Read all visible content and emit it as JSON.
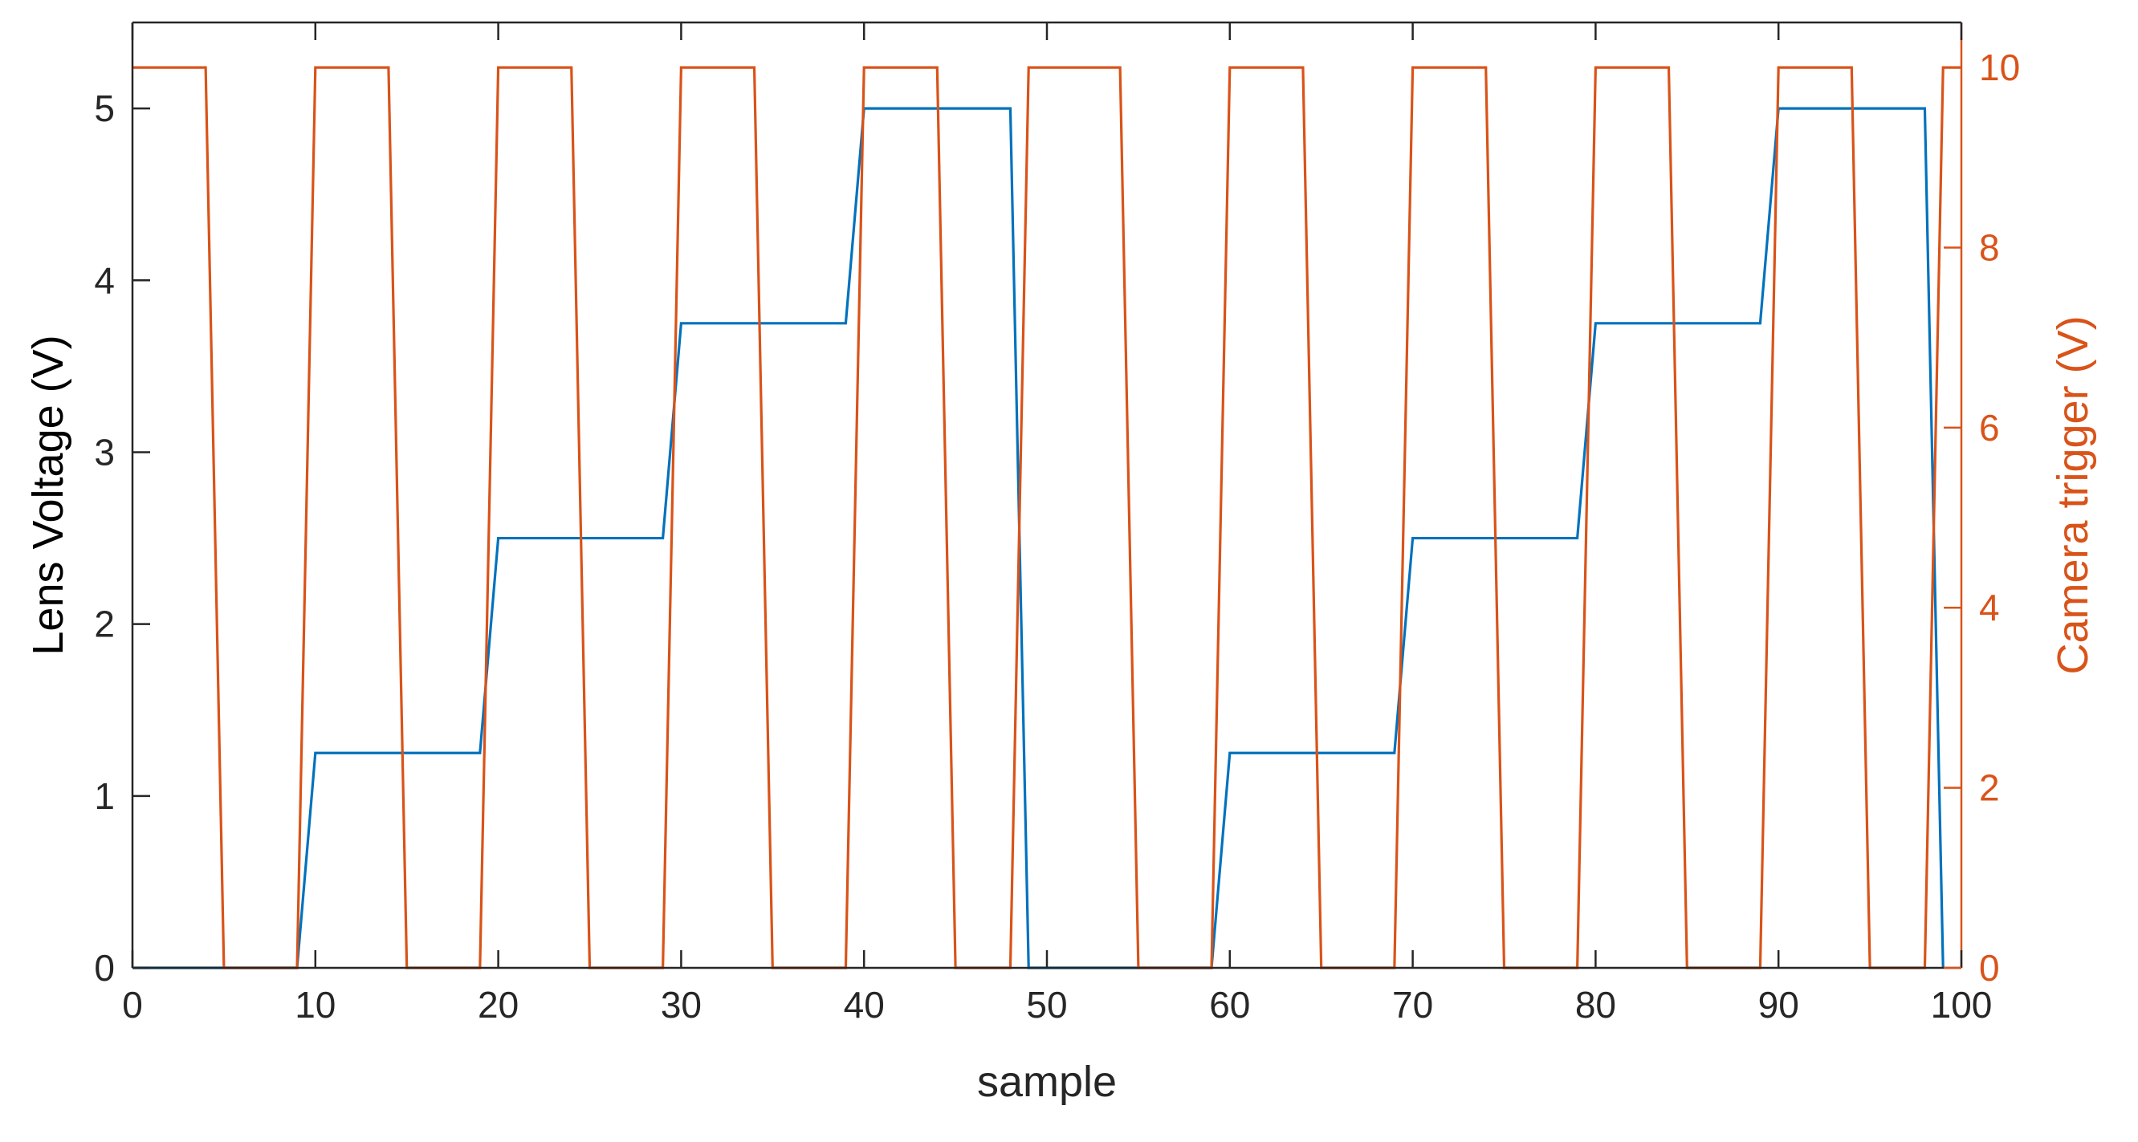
{
  "chart_data": {
    "type": "line",
    "title": "",
    "xlabel": "sample",
    "ylabel_left": "Lens Voltage (V)",
    "ylabel_right": "Camera trigger (V)",
    "xlim": [
      0,
      100
    ],
    "ylim_left": [
      0,
      5.5
    ],
    "ylim_right": [
      0,
      10.5
    ],
    "xticks": [
      "0",
      "10",
      "20",
      "30",
      "40",
      "50",
      "60",
      "70",
      "80",
      "90",
      "100"
    ],
    "yticks_left": [
      "0",
      "1",
      "2",
      "3",
      "4",
      "5"
    ],
    "yticks_right": [
      "0",
      "2",
      "4",
      "6",
      "8",
      "10"
    ],
    "grid": false,
    "legend": "none",
    "series": [
      {
        "axis": "left",
        "color": "#0072BD",
        "x": [
          0,
          9,
          10,
          19,
          20,
          29,
          30,
          39,
          40,
          48,
          49,
          59,
          60,
          69,
          70,
          79,
          80,
          89,
          90,
          98,
          99
        ],
        "y": [
          0,
          0,
          1.25,
          1.25,
          2.5,
          2.5,
          3.75,
          3.75,
          5,
          5,
          0,
          0,
          1.25,
          1.25,
          2.5,
          2.5,
          3.75,
          3.75,
          5,
          5,
          0
        ]
      },
      {
        "axis": "right",
        "color": "#D95319",
        "x": [
          0,
          4,
          5,
          9,
          10,
          14,
          15,
          19,
          20,
          24,
          25,
          29,
          30,
          34,
          35,
          39,
          40,
          44,
          45,
          48,
          49,
          54,
          55,
          59,
          60,
          64,
          65,
          69,
          70,
          74,
          75,
          79,
          80,
          84,
          85,
          89,
          90,
          94,
          95,
          98,
          99,
          100
        ],
        "y": [
          10,
          10,
          0,
          0,
          10,
          10,
          0,
          0,
          10,
          10,
          0,
          0,
          10,
          10,
          0,
          0,
          10,
          10,
          0,
          0,
          10,
          10,
          0,
          0,
          10,
          10,
          0,
          0,
          10,
          10,
          0,
          0,
          10,
          10,
          0,
          0,
          10,
          10,
          0,
          0,
          10,
          10
        ]
      }
    ]
  },
  "colors": {
    "axis": "#262626",
    "left_series": "#0072BD",
    "right_series": "#D95319"
  }
}
